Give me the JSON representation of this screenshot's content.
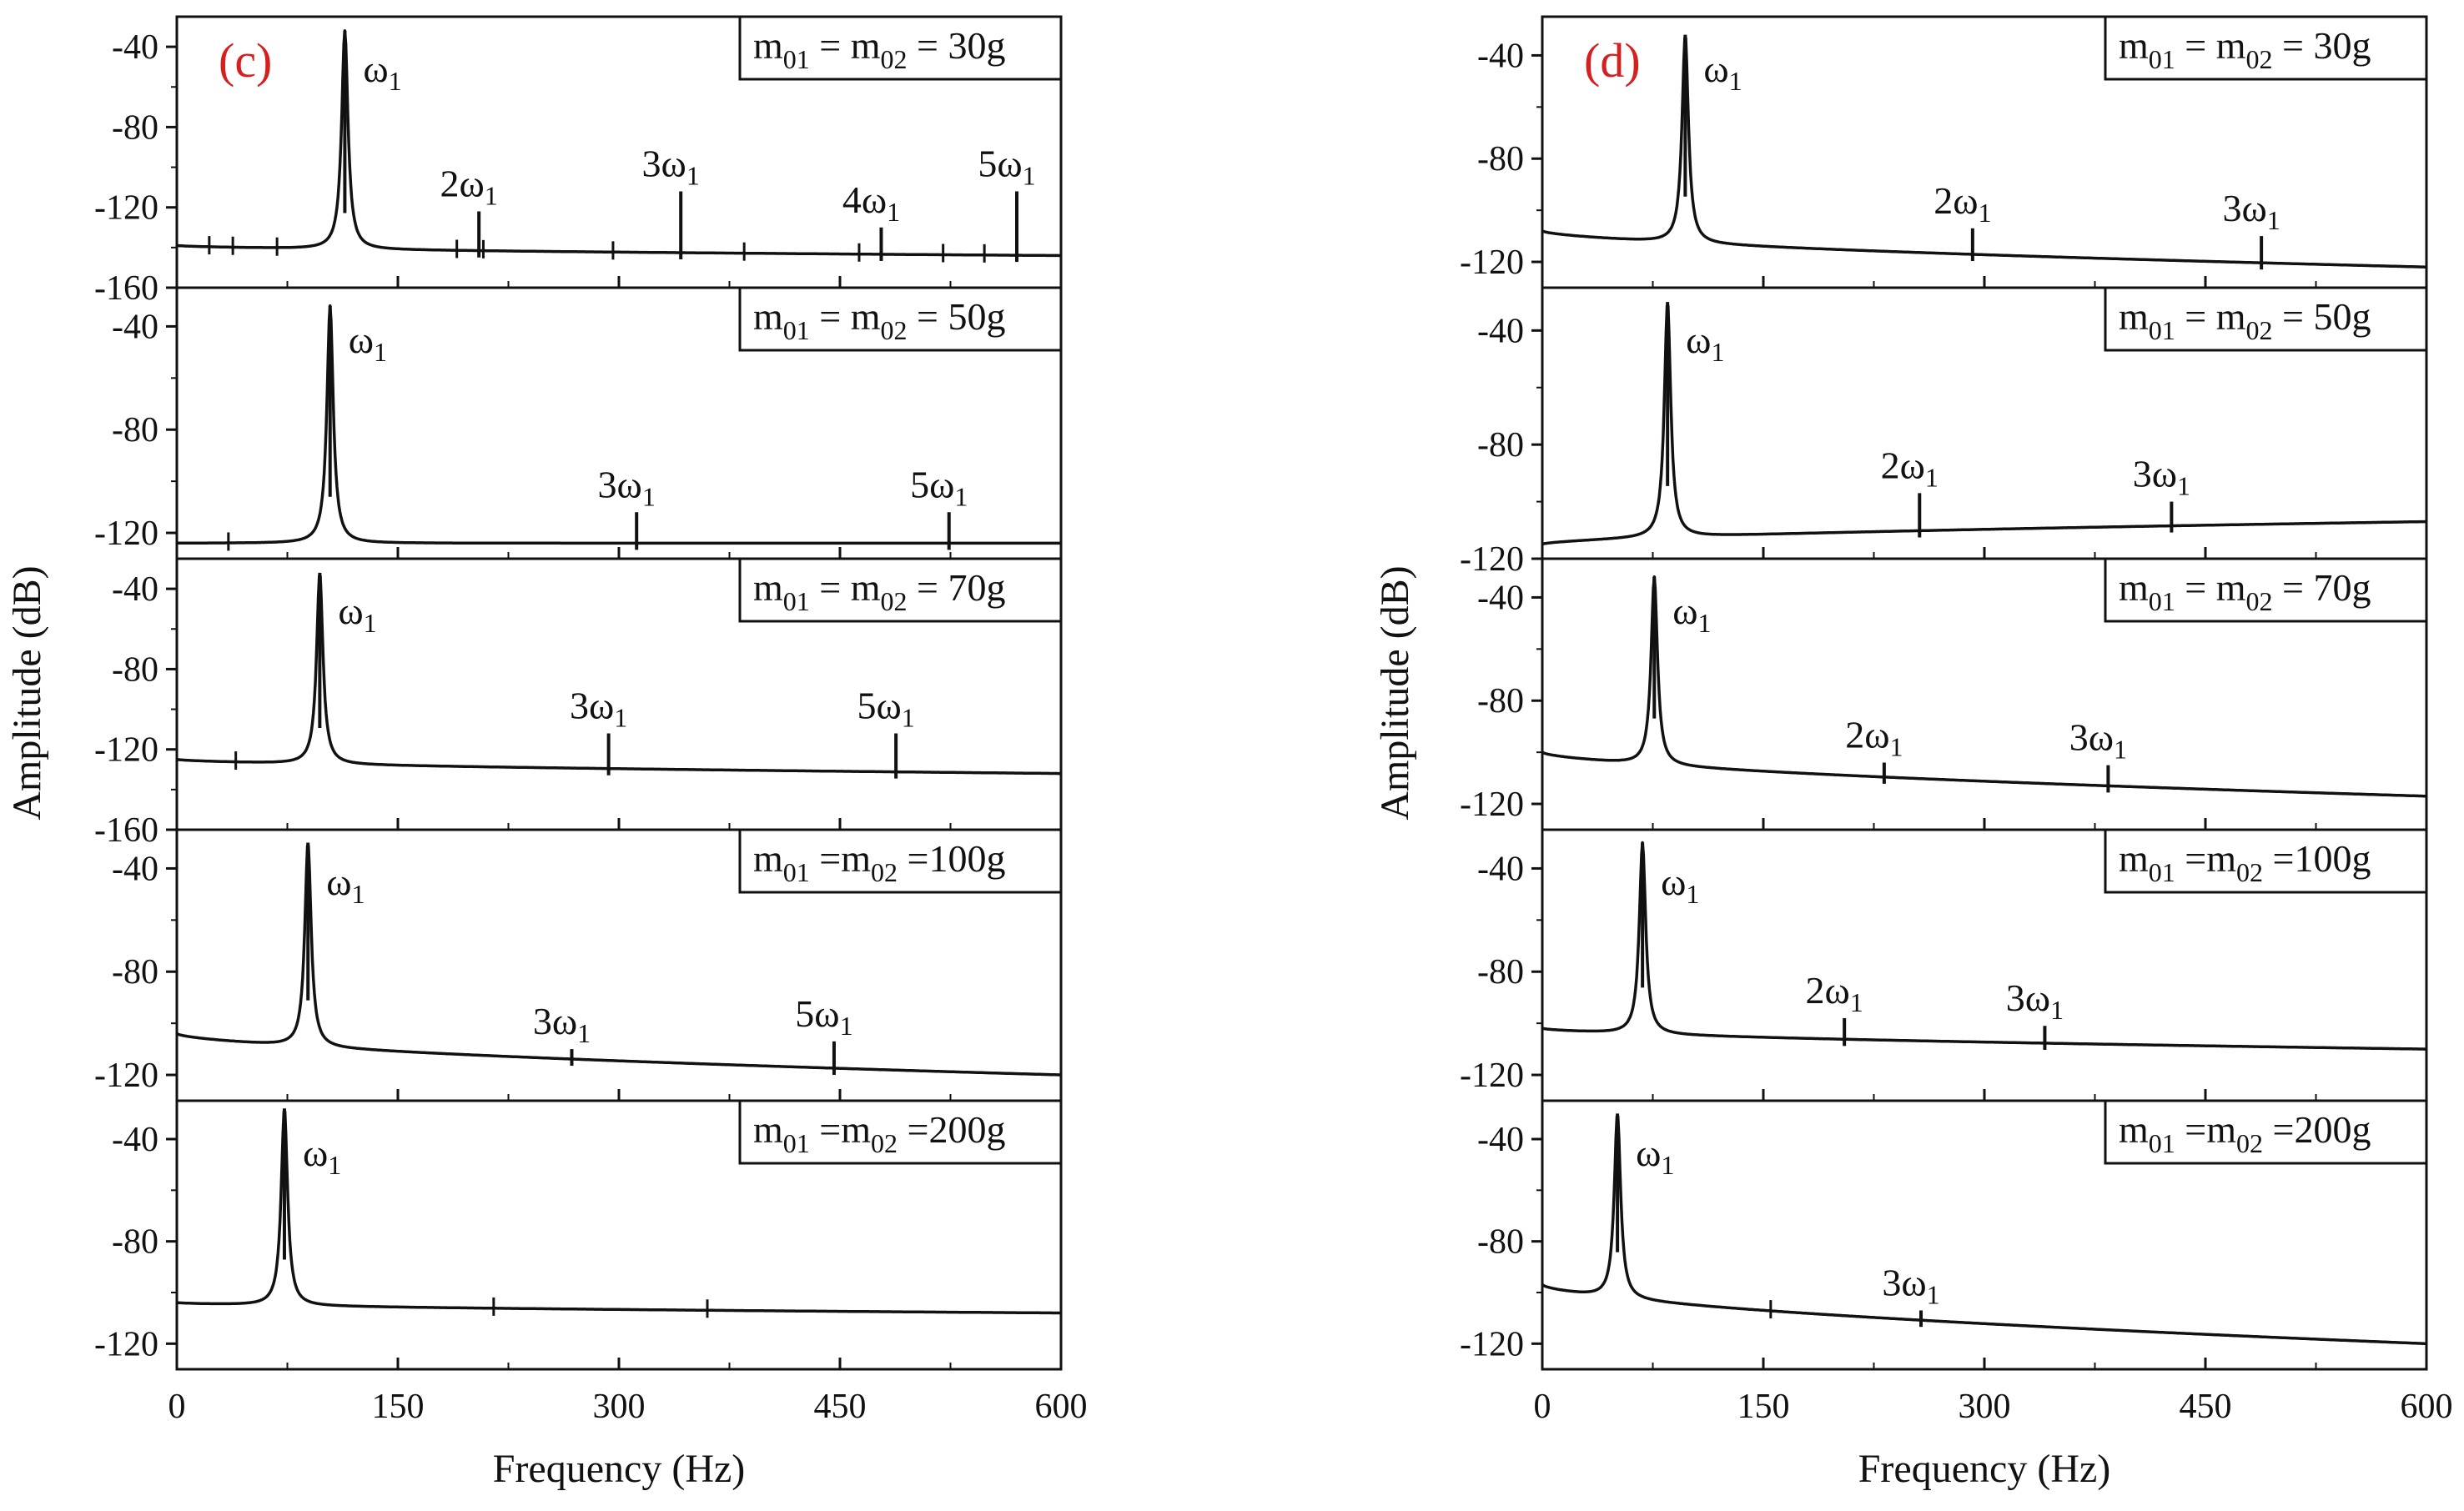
{
  "figures": [
    {
      "panel_label": "(c)",
      "xlabel": "Frequency (Hz)",
      "ylabel": "Amplitude (dB)",
      "x_tick_labels": [
        "0",
        "150",
        "300",
        "450",
        "600"
      ]
    },
    {
      "panel_label": "(d)",
      "xlabel": "Frequency (Hz)",
      "ylabel": "Amplitude (dB)",
      "x_tick_labels": [
        "0",
        "150",
        "300",
        "450",
        "600"
      ]
    }
  ],
  "colors": {
    "label_red": "#d62020",
    "line": "#111111",
    "frame": "#111111"
  },
  "chart_data": [
    {
      "type": "line",
      "figure": "(c)",
      "title": "m01 = m02 = 30g",
      "legend": {
        "m": "m",
        "sub1": "01",
        "mid": " = ",
        "sub2": "02",
        "tail": " = 30g"
      },
      "xlim": [
        0,
        600
      ],
      "ylim": [
        -160,
        -25
      ],
      "x_ticks": [
        0,
        150,
        300,
        450,
        600
      ],
      "y_ticks": [
        -40,
        -80,
        -120,
        -160
      ],
      "y_tick_labels": [
        "-40",
        "-80",
        "-120",
        "-160"
      ],
      "fundamental_hz": 114,
      "peak_db": -32,
      "baseline_start_db": -139,
      "baseline_end_db": -144,
      "harmonics": [
        {
          "label": "2ω",
          "sub": "1",
          "x": 205,
          "db": -122
        },
        {
          "label": "3ω",
          "sub": "1",
          "x": 342,
          "db": -112
        },
        {
          "label": "4ω",
          "sub": "1",
          "x": 478,
          "db": -130
        },
        {
          "label": "5ω",
          "sub": "1",
          "x": 570,
          "db": -112
        }
      ],
      "noise_x": [
        22,
        38,
        68,
        190,
        208,
        296,
        385,
        463,
        520,
        548
      ],
      "peak_label": {
        "label": "ω",
        "sub": "1"
      }
    },
    {
      "type": "line",
      "figure": "(c)",
      "title": "m01 = m02 = 50g",
      "legend": {
        "m": "m",
        "sub1": "01",
        "mid": " = ",
        "sub2": "02",
        "tail": " = 50g"
      },
      "xlim": [
        0,
        600
      ],
      "ylim": [
        -130,
        -25
      ],
      "x_ticks": [
        0,
        150,
        300,
        450,
        600
      ],
      "y_ticks": [
        -40,
        -80,
        -120
      ],
      "y_tick_labels": [
        "-40",
        "-80",
        "-120"
      ],
      "fundamental_hz": 104,
      "peak_db": -32,
      "baseline_start_db": -124,
      "baseline_end_db": -124,
      "harmonics": [
        {
          "label": "3ω",
          "sub": "1",
          "x": 312,
          "db": -112
        },
        {
          "label": "5ω",
          "sub": "1",
          "x": 524,
          "db": -112
        }
      ],
      "noise_x": [
        35
      ],
      "peak_label": {
        "label": "ω",
        "sub": "1"
      }
    },
    {
      "type": "line",
      "figure": "(c)",
      "title": "m01 = m02 = 70g",
      "legend": {
        "m": "m",
        "sub1": "01",
        "mid": " = ",
        "sub2": "02",
        "tail": " = 70g"
      },
      "xlim": [
        0,
        600
      ],
      "ylim": [
        -160,
        -25
      ],
      "x_ticks": [
        0,
        150,
        300,
        450,
        600
      ],
      "y_ticks": [
        -40,
        -80,
        -120,
        -160
      ],
      "y_tick_labels": [
        "-40",
        "-80",
        "-120",
        "-160"
      ],
      "fundamental_hz": 97,
      "peak_db": -32,
      "baseline_start_db": -125,
      "baseline_end_db": -132,
      "harmonics": [
        {
          "label": "3ω",
          "sub": "1",
          "x": 293,
          "db": -112
        },
        {
          "label": "5ω",
          "sub": "1",
          "x": 488,
          "db": -112
        }
      ],
      "noise_x": [
        40
      ],
      "peak_label": {
        "label": "ω",
        "sub": "1"
      }
    },
    {
      "type": "line",
      "figure": "(c)",
      "title": "m01 =m02 =100g",
      "legend": {
        "m": "m",
        "sub1": "01",
        "mid": " =",
        "sub2": "02",
        "tail": " =100g"
      },
      "xlim": [
        0,
        600
      ],
      "ylim": [
        -130,
        -25
      ],
      "x_ticks": [
        0,
        150,
        300,
        450,
        600
      ],
      "y_ticks": [
        -40,
        -80,
        -120
      ],
      "y_tick_labels": [
        "-40",
        "-80",
        "-120"
      ],
      "fundamental_hz": 89,
      "peak_db": -30,
      "baseline_start_db": -104,
      "baseline_end_db": -120,
      "harmonics": [
        {
          "label": "3ω",
          "sub": "1",
          "x": 268,
          "db": -110
        },
        {
          "label": "5ω",
          "sub": "1",
          "x": 446,
          "db": -107
        }
      ],
      "noise_x": [],
      "peak_label": {
        "label": "ω",
        "sub": "1"
      }
    },
    {
      "type": "line",
      "figure": "(c)",
      "title": "m01 =m02 =200g",
      "legend": {
        "m": "m",
        "sub1": "01",
        "mid": " =",
        "sub2": "02",
        "tail": " =200g"
      },
      "xlim": [
        0,
        600
      ],
      "ylim": [
        -130,
        -25
      ],
      "x_ticks": [
        0,
        150,
        300,
        450,
        600
      ],
      "y_ticks": [
        -40,
        -80,
        -120
      ],
      "y_tick_labels": [
        "-40",
        "-80",
        "-120"
      ],
      "fundamental_hz": 73,
      "peak_db": -28,
      "baseline_start_db": -104,
      "baseline_end_db": -108,
      "harmonics": [],
      "noise_x": [
        215,
        360
      ],
      "peak_label": {
        "label": "ω",
        "sub": "1"
      }
    },
    {
      "type": "line",
      "figure": "(d)",
      "title": "m01 = m02 = 30g",
      "legend": {
        "m": "m",
        "sub1": "01",
        "mid": " = ",
        "sub2": "02",
        "tail": " = 30g"
      },
      "xlim": [
        0,
        600
      ],
      "ylim": [
        -130,
        -25
      ],
      "x_ticks": [
        0,
        150,
        300,
        450,
        600
      ],
      "y_ticks": [
        -40,
        -80,
        -120
      ],
      "y_tick_labels": [
        "-40",
        "-80",
        "-120"
      ],
      "fundamental_hz": 97,
      "peak_db": -32,
      "baseline_start_db": -108,
      "baseline_end_db": -122,
      "harmonics": [
        {
          "label": "2ω",
          "sub": "1",
          "x": 292,
          "db": -107
        },
        {
          "label": "3ω",
          "sub": "1",
          "x": 488,
          "db": -110
        }
      ],
      "noise_x": [],
      "peak_label": {
        "label": "ω",
        "sub": "1"
      }
    },
    {
      "type": "line",
      "figure": "(d)",
      "title": "m01 = m02 = 50g",
      "legend": {
        "m": "m",
        "sub1": "01",
        "mid": " = ",
        "sub2": "02",
        "tail": " = 50g"
      },
      "xlim": [
        0,
        600
      ],
      "ylim": [
        -120,
        -25
      ],
      "x_ticks": [
        0,
        150,
        300,
        450,
        600
      ],
      "y_ticks": [
        -40,
        -80,
        -120
      ],
      "y_tick_labels": [
        "-40",
        "-80",
        "-120"
      ],
      "fundamental_hz": 85,
      "peak_db": -30,
      "baseline_start_db": -115,
      "baseline_end_db": -107,
      "harmonics": [
        {
          "label": "2ω",
          "sub": "1",
          "x": 256,
          "db": -97
        },
        {
          "label": "3ω",
          "sub": "1",
          "x": 427,
          "db": -100
        }
      ],
      "noise_x": [],
      "peak_label": {
        "label": "ω",
        "sub": "1"
      }
    },
    {
      "type": "line",
      "figure": "(d)",
      "title": "m01 = m02 = 70g",
      "legend": {
        "m": "m",
        "sub1": "01",
        "mid": " = ",
        "sub2": "02",
        "tail": " = 70g"
      },
      "xlim": [
        0,
        600
      ],
      "ylim": [
        -130,
        -25
      ],
      "x_ticks": [
        0,
        150,
        300,
        450,
        600
      ],
      "y_ticks": [
        -40,
        -80,
        -120
      ],
      "y_tick_labels": [
        "-40",
        "-80",
        "-120"
      ],
      "fundamental_hz": 76,
      "peak_db": -32,
      "baseline_start_db": -100,
      "baseline_end_db": -117,
      "harmonics": [
        {
          "label": "2ω",
          "sub": "1",
          "x": 232,
          "db": -104
        },
        {
          "label": "3ω",
          "sub": "1",
          "x": 384,
          "db": -105
        }
      ],
      "noise_x": [],
      "peak_label": {
        "label": "ω",
        "sub": "1"
      }
    },
    {
      "type": "line",
      "figure": "(d)",
      "title": "m01 =m02 =100g",
      "legend": {
        "m": "m",
        "sub1": "01",
        "mid": " =",
        "sub2": "02",
        "tail": " =100g"
      },
      "xlim": [
        0,
        600
      ],
      "ylim": [
        -130,
        -25
      ],
      "x_ticks": [
        0,
        150,
        300,
        450,
        600
      ],
      "y_ticks": [
        -40,
        -80,
        -120
      ],
      "y_tick_labels": [
        "-40",
        "-80",
        "-120"
      ],
      "fundamental_hz": 68,
      "peak_db": -30,
      "baseline_start_db": -102,
      "baseline_end_db": -110,
      "harmonics": [
        {
          "label": "2ω",
          "sub": "1",
          "x": 205,
          "db": -98
        },
        {
          "label": "3ω",
          "sub": "1",
          "x": 341,
          "db": -101
        }
      ],
      "noise_x": [],
      "peak_label": {
        "label": "ω",
        "sub": "1"
      }
    },
    {
      "type": "line",
      "figure": "(d)",
      "title": "m01 =m02 =200g",
      "legend": {
        "m": "m",
        "sub1": "01",
        "mid": " =",
        "sub2": "02",
        "tail": " =200g"
      },
      "xlim": [
        0,
        600
      ],
      "ylim": [
        -130,
        -25
      ],
      "x_ticks": [
        0,
        150,
        300,
        450,
        600
      ],
      "y_ticks": [
        -40,
        -80,
        -120
      ],
      "y_tick_labels": [
        "-40",
        "-80",
        "-120"
      ],
      "fundamental_hz": 51,
      "peak_db": -30,
      "baseline_start_db": -97,
      "baseline_end_db": -120,
      "harmonics": [
        {
          "label": "3ω",
          "sub": "1",
          "x": 257,
          "db": -107
        }
      ],
      "noise_x": [
        155
      ],
      "peak_label": {
        "label": "ω",
        "sub": "1"
      }
    }
  ]
}
